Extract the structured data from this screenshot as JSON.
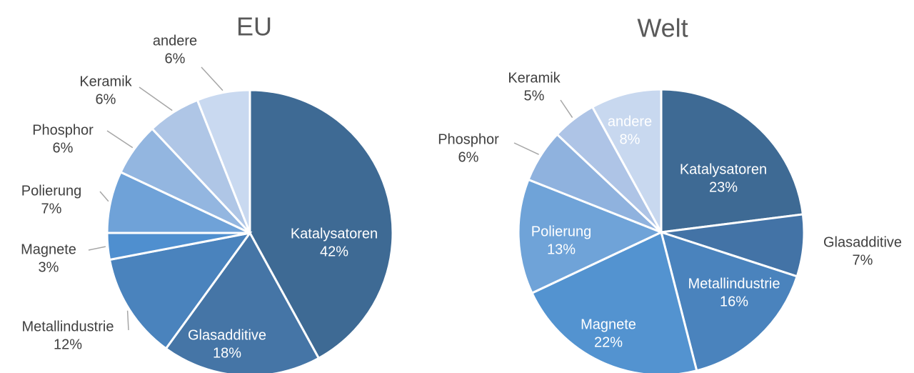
{
  "chart_data": [
    {
      "type": "pie",
      "title": "EU",
      "categories": [
        "Katalysatoren",
        "Glasadditive",
        "Metallindustrie",
        "Magnete",
        "Polierung",
        "Phosphor",
        "Keramik",
        "andere"
      ],
      "values": [
        42,
        18,
        12,
        3,
        7,
        6,
        6,
        6
      ],
      "value_labels": [
        "42%",
        "18%",
        "12%",
        "3%",
        "7%",
        "6%",
        "6%",
        "6%"
      ],
      "colors": [
        "#3e6a94",
        "#4575a6",
        "#4a83bd",
        "#4f8fcf",
        "#6fa2d8",
        "#93b6e0",
        "#afc6e6",
        "#c9d9f0"
      ]
    },
    {
      "type": "pie",
      "title": "Welt",
      "categories": [
        "Katalysatoren",
        "Glasadditive",
        "Metallindustrie",
        "Magnete",
        "Polierung",
        "Phosphor",
        "Keramik",
        "andere"
      ],
      "values": [
        23,
        7,
        16,
        22,
        13,
        6,
        5,
        8
      ],
      "value_labels": [
        "23%",
        "7%",
        "16%",
        "22%",
        "13%",
        "6%",
        "5%",
        "8%"
      ],
      "colors": [
        "#3e6a94",
        "#4373a6",
        "#4a83bd",
        "#5393d0",
        "#6fa3d8",
        "#8fb2de",
        "#aec4e6",
        "#c8d8ef"
      ]
    }
  ]
}
